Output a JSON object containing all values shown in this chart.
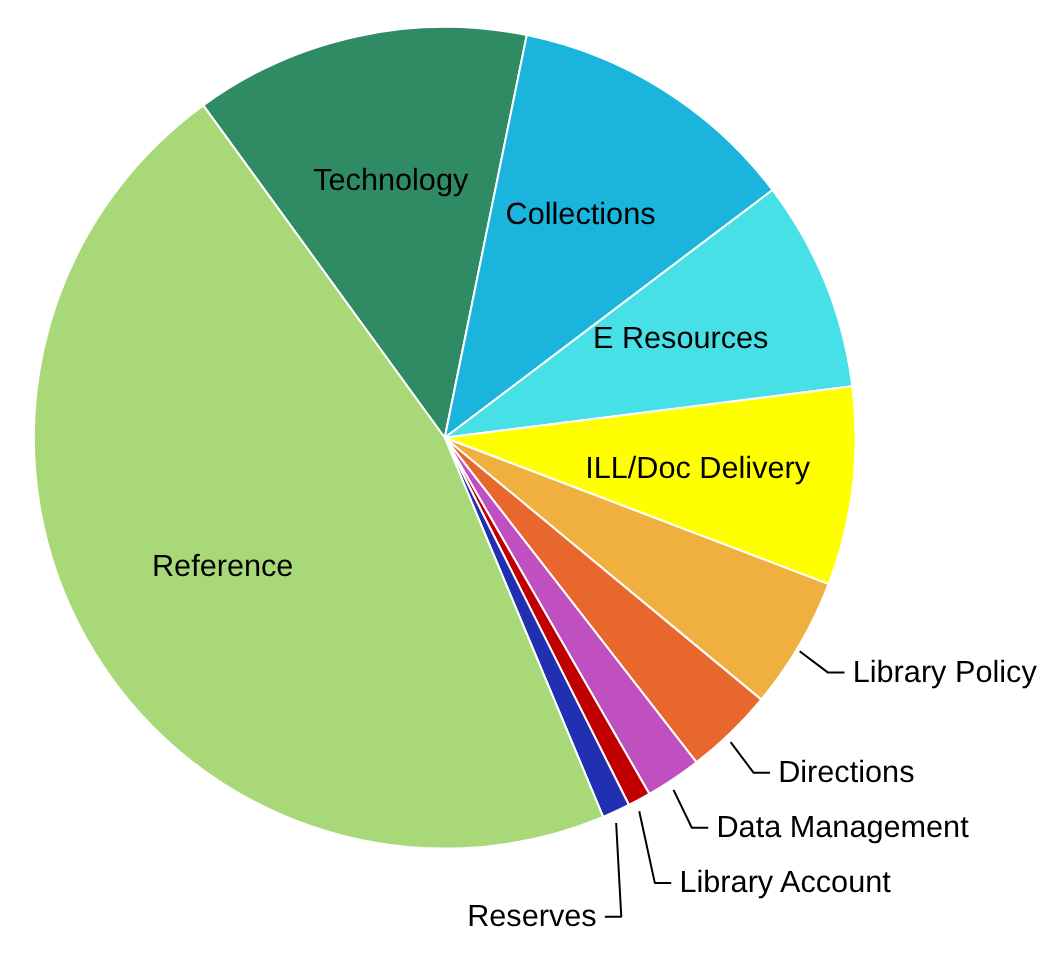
{
  "chart_data": {
    "type": "pie",
    "categories": [
      "Technology",
      "Collections",
      "E Resources",
      "ILL/Doc Delivery",
      "Library Policy",
      "Directions",
      "Data Management",
      "Library Account",
      "Reserves",
      "Reference"
    ],
    "values": [
      13.2,
      11.5,
      8.3,
      7.8,
      5.2,
      3.5,
      2.2,
      0.9,
      1.1,
      46.3
    ],
    "colors": [
      "#2e8b64",
      "#1ab4dc",
      "#46e0e6",
      "#ffff00",
      "#f0b040",
      "#e8672c",
      "#c050c0",
      "#c00000",
      "#2030b0",
      "#a8d878"
    ]
  }
}
